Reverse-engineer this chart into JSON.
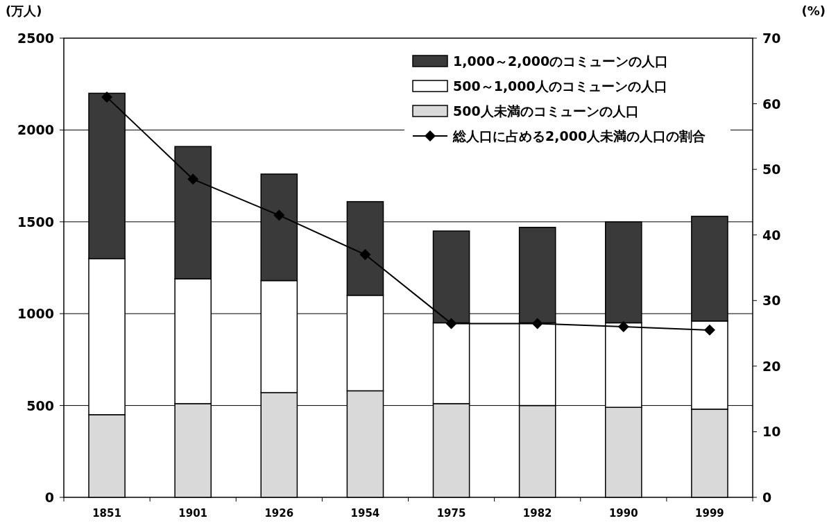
{
  "chart_data": {
    "type": "bar",
    "stacked": true,
    "ylabel": "(万人)",
    "y2label": "(%)",
    "categories": [
      "1851",
      "1901",
      "1926",
      "1954",
      "1975",
      "1982",
      "1990",
      "1999"
    ],
    "ylim": [
      0,
      2500
    ],
    "yticks": [
      0,
      500,
      1000,
      1500,
      2000,
      2500
    ],
    "y2lim": [
      0,
      70
    ],
    "y2ticks": [
      0,
      10,
      20,
      30,
      40,
      50,
      60,
      70
    ],
    "grid": "y",
    "legend": "top right",
    "marker": "diamond",
    "series": [
      {
        "name": "500人未満のコミューンの人口",
        "color": "#d9d9d9",
        "values": [
          450,
          510,
          570,
          580,
          510,
          500,
          490,
          480
        ]
      },
      {
        "name": "500～1,000人のコミューンの人口",
        "color": "#ffffff",
        "values": [
          850,
          680,
          610,
          520,
          440,
          450,
          460,
          480
        ]
      },
      {
        "name": "1,000～2,000のコミューンの人口",
        "color": "#3a3a3a",
        "values": [
          900,
          720,
          580,
          510,
          500,
          520,
          550,
          570
        ]
      },
      {
        "name": "総人口に占める2,000人未満の人口の割合",
        "type": "line",
        "axis": "y2",
        "color": "#000000",
        "values": [
          61,
          48.5,
          43,
          37,
          26.5,
          26.5,
          26,
          25.5
        ]
      }
    ]
  }
}
